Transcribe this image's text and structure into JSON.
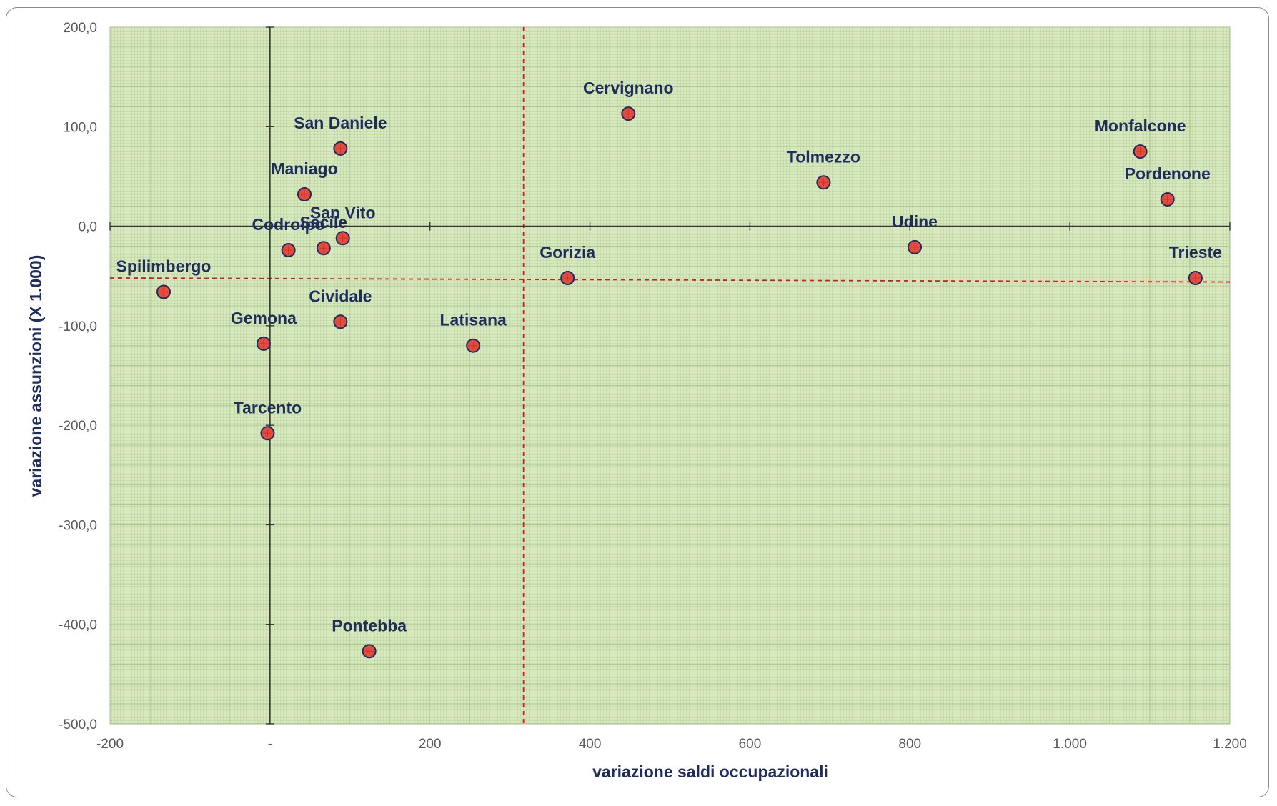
{
  "chart_data": {
    "type": "scatter",
    "title": "",
    "xlabel": "variazione saldi occupazionali",
    "ylabel": "variazione assunzioni (X 1.000)",
    "xlim": [
      -200,
      1200
    ],
    "ylim": [
      -500,
      200
    ],
    "x_ticks": [
      {
        "value": -200,
        "label": "-200"
      },
      {
        "value": 0,
        "label": "-"
      },
      {
        "value": 200,
        "label": "200"
      },
      {
        "value": 400,
        "label": "400"
      },
      {
        "value": 600,
        "label": "600"
      },
      {
        "value": 800,
        "label": "800"
      },
      {
        "value": 1000,
        "label": "1.000"
      },
      {
        "value": 1200,
        "label": "1.200"
      }
    ],
    "y_ticks": [
      {
        "value": 200,
        "label": "200,0"
      },
      {
        "value": 100,
        "label": "100,0"
      },
      {
        "value": 0,
        "label": "0,0"
      },
      {
        "value": -100,
        "label": "-100,0"
      },
      {
        "value": -200,
        "label": "-200,0"
      },
      {
        "value": -300,
        "label": "-300,0"
      },
      {
        "value": -400,
        "label": "-400,0"
      },
      {
        "value": -500,
        "label": "-500,0"
      }
    ],
    "points": [
      {
        "label": "Cervignano",
        "x": 448,
        "y": 113
      },
      {
        "label": "San Daniele",
        "x": 88,
        "y": 78
      },
      {
        "label": "Maniago",
        "x": 43,
        "y": 32
      },
      {
        "label": "Monfalcone",
        "x": 1088,
        "y": 75
      },
      {
        "label": "Tolmezzo",
        "x": 692,
        "y": 44
      },
      {
        "label": "Pordenone",
        "x": 1122,
        "y": 27
      },
      {
        "label": "Sacile",
        "x": 67,
        "y": -22
      },
      {
        "label": "San Vito",
        "x": 91,
        "y": -12
      },
      {
        "label": "Codroipo",
        "x": 23,
        "y": -24
      },
      {
        "label": "Udine",
        "x": 806,
        "y": -21
      },
      {
        "label": "Gorizia",
        "x": 372,
        "y": -52
      },
      {
        "label": "Trieste",
        "x": 1157,
        "y": -52
      },
      {
        "label": "Spilimbergo",
        "x": -133,
        "y": -66
      },
      {
        "label": "Cividale",
        "x": 88,
        "y": -96
      },
      {
        "label": "Gemona",
        "x": -8,
        "y": -118
      },
      {
        "label": "Latisana",
        "x": 254,
        "y": -120
      },
      {
        "label": "Tarcento",
        "x": -3,
        "y": -208
      },
      {
        "label": "Pontebba",
        "x": 124,
        "y": -427
      }
    ],
    "reference_lines": {
      "vertical_x": 317,
      "horizontal": {
        "y_start": -52,
        "y_end": -56
      }
    },
    "colors": {
      "plot_background": "#d7e8bf",
      "grid": "#a9c48a",
      "point_fill": "#e64a3c",
      "point_stroke": "#1f2d5c",
      "label_text": "#1f2d5c",
      "reference_line": "#cc1f1f",
      "axis_line": "#333333"
    },
    "grid": true,
    "legend": "none"
  }
}
